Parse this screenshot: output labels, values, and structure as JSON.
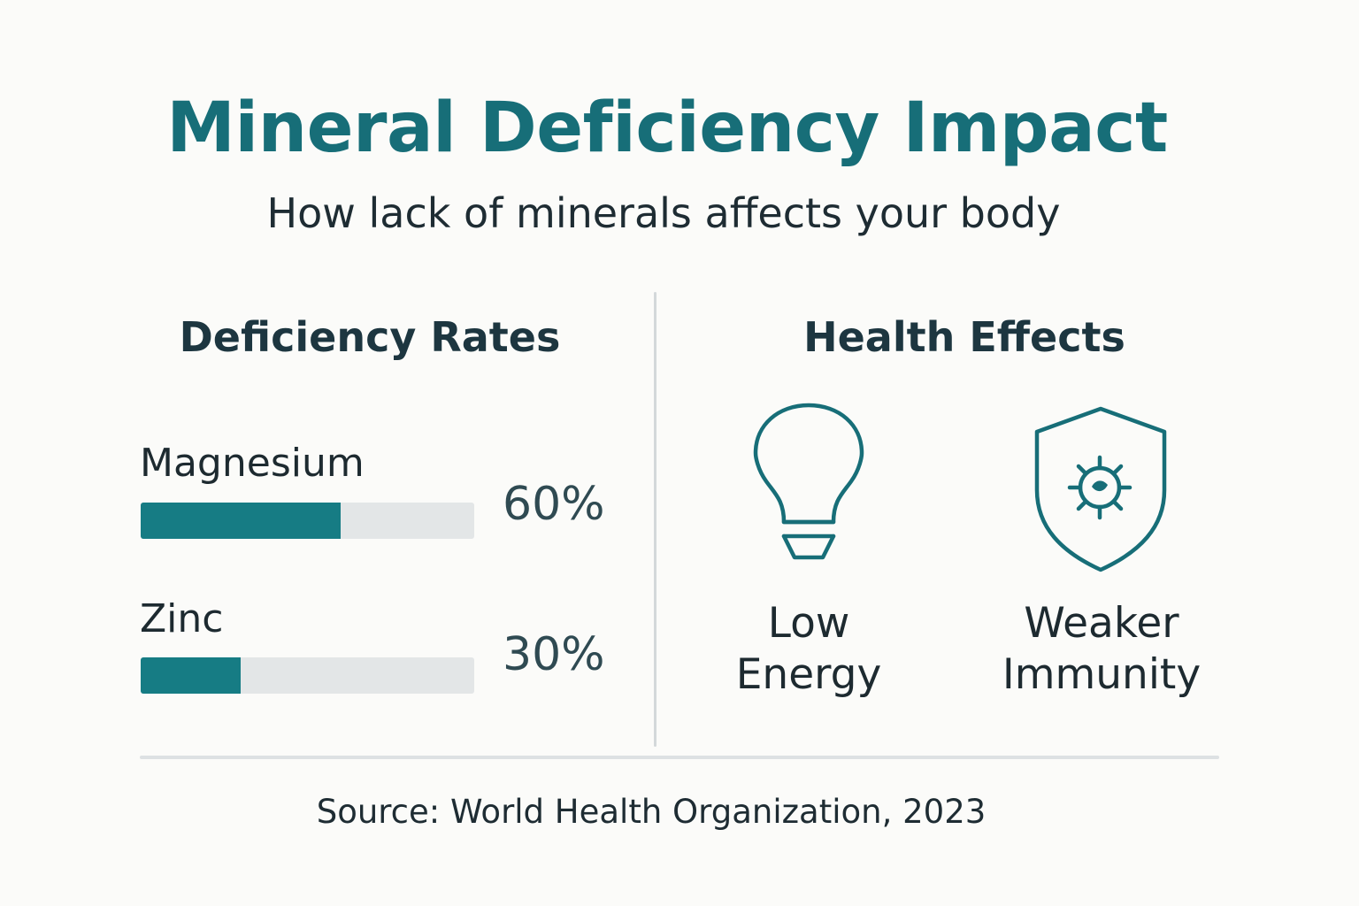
{
  "title": "Mineral Deficiency Impact",
  "subtitle": "How lack of minerals affects your body",
  "left_panel": {
    "heading": "Deficiency Rates"
  },
  "right_panel": {
    "heading": "Health Effects",
    "effects": [
      {
        "line1": "Low",
        "line2": "Energy",
        "icon": "lightbulb-icon"
      },
      {
        "line1": "Weaker",
        "line2": "Immunity",
        "icon": "shield-virus-icon"
      }
    ]
  },
  "chart_data": {
    "type": "bar",
    "orientation": "horizontal",
    "title": "Deficiency Rates",
    "categories": [
      "Magnesium",
      "Zinc"
    ],
    "values": [
      60,
      30
    ],
    "value_labels": [
      "60%",
      "30%"
    ],
    "unit": "%",
    "xlim": [
      0,
      100
    ],
    "grid": false
  },
  "colors": {
    "accent": "#176e78",
    "bar_fill": "#167c84",
    "bar_track": "#e3e6e7",
    "text": "#1d2a30"
  },
  "source": "Source: World Health Organization, 2023"
}
